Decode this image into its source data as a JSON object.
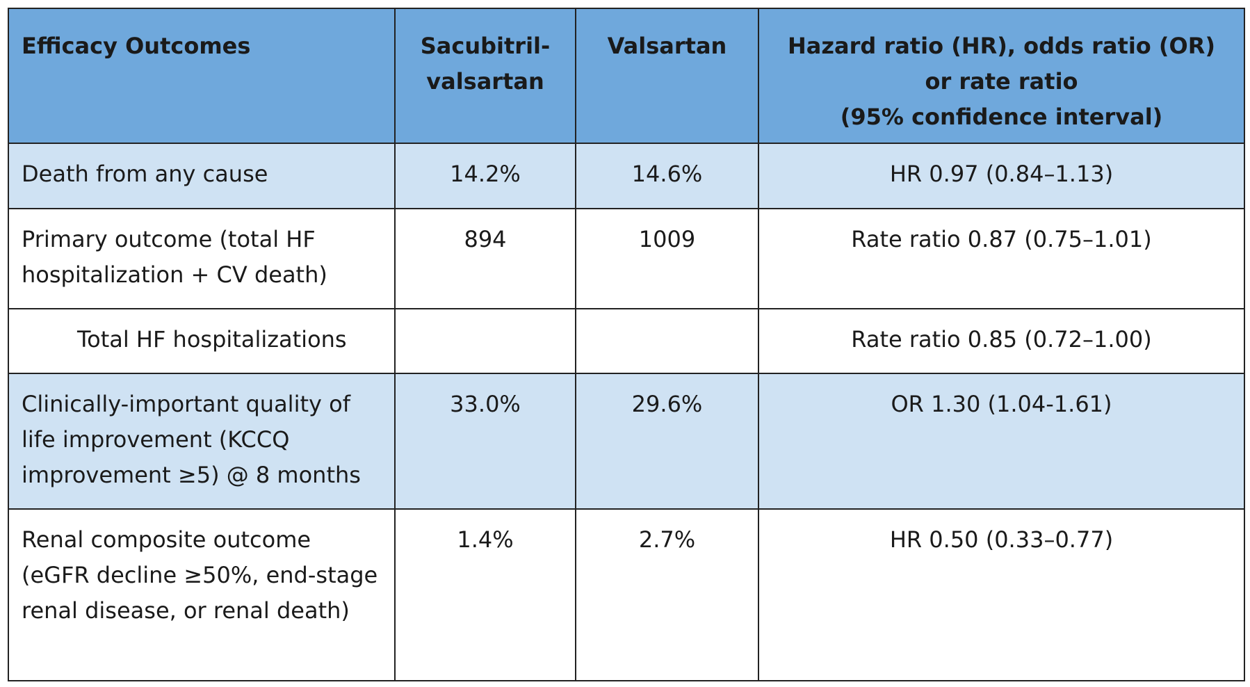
{
  "table": {
    "header": [
      [
        "Efficacy Outcomes"
      ],
      [
        "Sacubitril-valsartan"
      ],
      [
        "Valsartan"
      ],
      [
        "Hazard ratio (HR), odds ratio (OR) or rate ratio",
        "(95% confidence interval)"
      ]
    ],
    "rows": [
      [
        "Death from any cause",
        "14.2%",
        "14.6%",
        "HR 0.97 (0.84–1.13)"
      ],
      [
        "Primary outcome (total HF hospitalization + CV death)",
        "894",
        "1009",
        "Rate ratio 0.87 (0.75–1.01)"
      ],
      [
        "Total HF hospitalizations",
        null,
        null,
        "Rate ratio 0.85 (0.72–1.00)"
      ],
      [
        "Clinically-important quality of life improvement (KCCQ improvement ≥5) @ 8 months",
        "33.0%",
        "29.6%",
        "OR 1.30 (1.04-1.61)"
      ],
      [
        "Renal composite outcome (eGFR decline ≥50%, end-stage renal disease, or renal death)",
        "1.4%",
        "2.7%",
        "HR 0.50 (0.33–0.77)"
      ]
    ]
  }
}
